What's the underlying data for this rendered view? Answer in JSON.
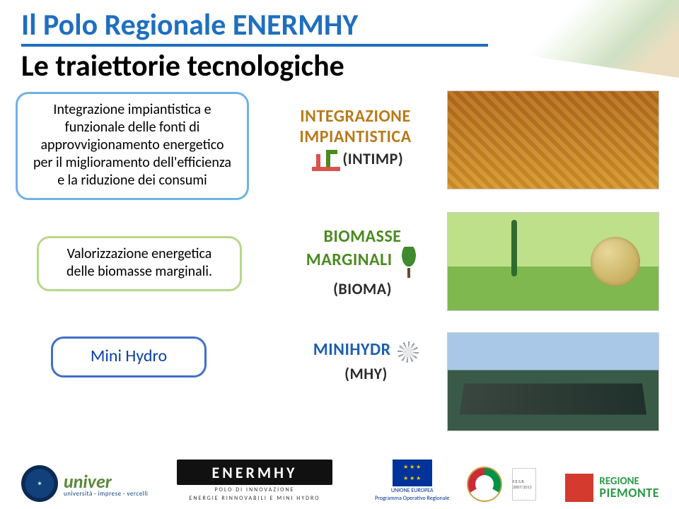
{
  "header": {
    "title": "Il Polo Regionale ENERMHY",
    "subtitle": "Le traiettorie tecnologiche",
    "title_color": "#1f6fbf",
    "rule_color": "#1f6fbf"
  },
  "callouts": [
    {
      "text": "Integrazione impiantistica e funzionale delle fonti di approvvigionamento energetico per il miglioramento dell'efficienza e la riduzione dei consumi",
      "border_color": "#6fb2e6"
    },
    {
      "text": "Valorizzazione energetica delle biomasse marginali.",
      "border_color": "#b6d88a"
    },
    {
      "text": "Mini Hydro",
      "border_color": "#3f6fc9",
      "text_color": "#0a3fa8"
    }
  ],
  "logo_blocks": [
    {
      "line1": "INTEGRAZIONE",
      "line2": "IMPIANTISTICA",
      "line3": "(INTIMP)",
      "color": "#b97a1a"
    },
    {
      "line1": "BIOMASSE",
      "line2": "MARGINALI",
      "line3": "(BIOMA)",
      "color": "#4a8a1f"
    },
    {
      "line1": "MINIHYDR",
      "line2": "",
      "line3": "(MHY)",
      "color": "#1d5fae"
    }
  ],
  "footer": {
    "univer": {
      "name": "univer",
      "tag": "università · imprese · vercelli"
    },
    "enermhy": {
      "name": "ENERMHY",
      "sub1": "POLO DI INNOVAZIONE",
      "sub2": "ENERGIE RINNOVABILI E MINI HYDRO"
    },
    "eu": {
      "l1": "UNIONE EUROPEA",
      "l2": "Programma Operativo Regionale"
    },
    "fesr": "F.E.S.R. 2007/2013",
    "piemonte": {
      "a": "REGIONE",
      "b": "PIEMONTE"
    }
  }
}
